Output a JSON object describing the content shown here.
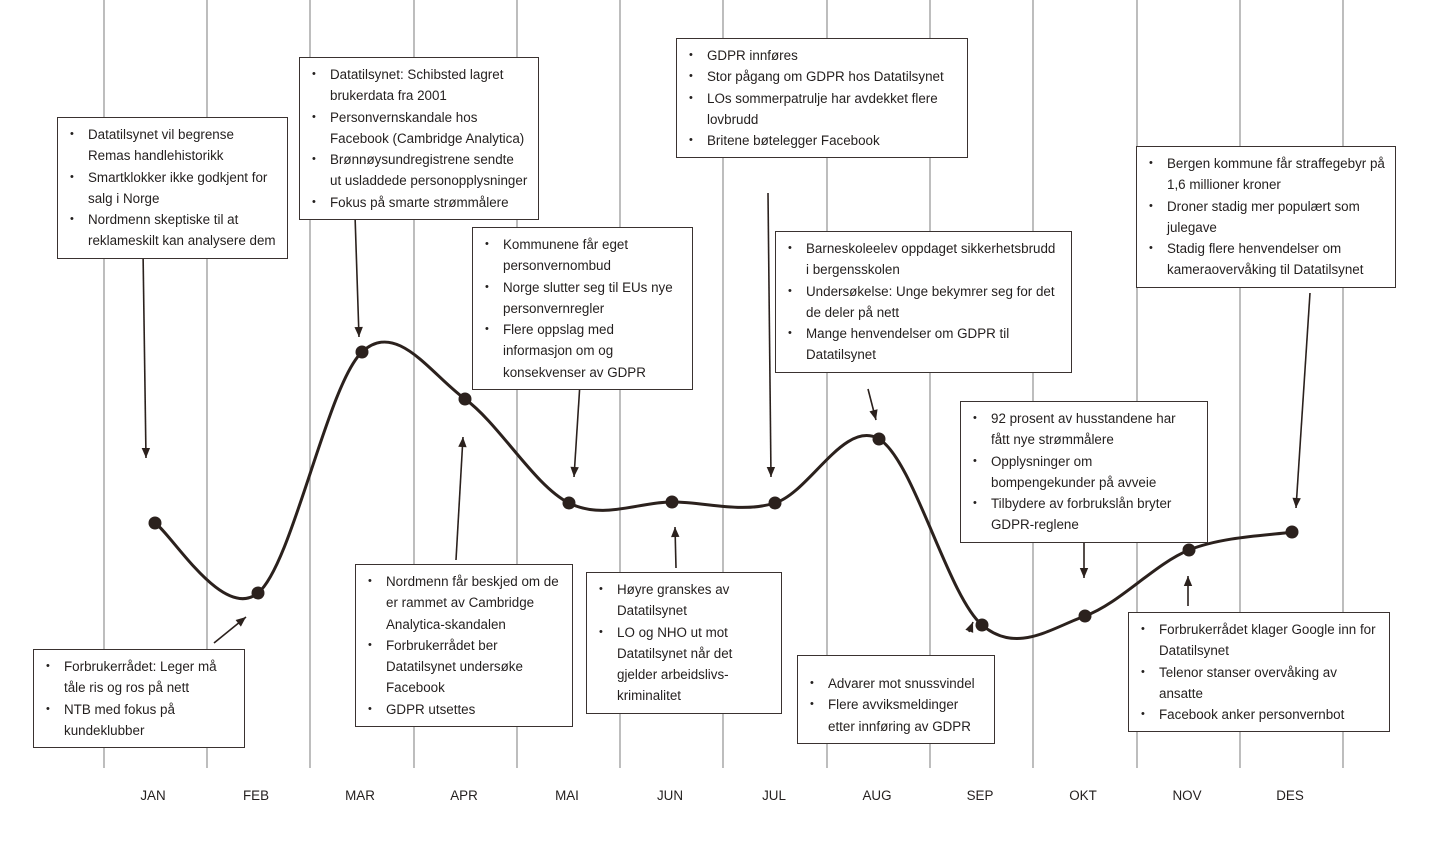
{
  "months": [
    "JAN",
    "FEB",
    "MAR",
    "APR",
    "MAI",
    "JUN",
    "JUL",
    "AUG",
    "SEP",
    "OKT",
    "NOV",
    "DES"
  ],
  "notes": [
    {
      "id": "jan",
      "items": [
        "Datatilsynet vil begrense Remas handlehistorikk",
        "Smartklokker ikke godkjent for salg i Norge",
        "Nordmenn skeptiske til at reklameskilt kan analysere dem"
      ]
    },
    {
      "id": "feb",
      "items": [
        "Forbrukerrådet: Leger må tåle ris og ros på nett",
        "NTB med fokus på kundeklubber"
      ]
    },
    {
      "id": "mar",
      "items": [
        "Datatilsynet: Schibsted lagret brukerdata fra 2001",
        "Personvernskandale hos Facebook (Cambridge  Analytica)",
        "Brønnøysundregistrene sendte ut usladdede personopplysninger",
        "Fokus på smarte strømmålere"
      ]
    },
    {
      "id": "apr",
      "items": [
        "Nordmenn får beskjed om de er rammet av Cambridge Analytica-skandalen",
        "Forbrukerrådet ber Datatilsynet undersøke Facebook",
        "GDPR utsettes"
      ]
    },
    {
      "id": "mai",
      "items": [
        "Kommunene får eget personvernombud",
        "Norge slutter seg til EUs nye personvernregler",
        "Flere oppslag med informasjon om og konsekvenser av GDPR"
      ]
    },
    {
      "id": "jun",
      "items": [
        "Høyre granskes av Datatilsynet",
        "LO og NHO ut mot Datatilsynet når det gjelder arbeidslivs-kriminalitet"
      ]
    },
    {
      "id": "jul",
      "items": [
        "GDPR innføres",
        "Stor pågang om GDPR hos Datatilsynet",
        "LOs sommerpatrulje har avdekket flere lovbrudd",
        "Britene bøtelegger Facebook"
      ]
    },
    {
      "id": "aug",
      "items": [
        "Barneskoleelev oppdaget sikkerhetsbrudd i bergensskolen",
        "Undersøkelse: Unge bekymrer seg for det de deler på nett",
        "Mange henvendelser om GDPR til Datatilsynet"
      ]
    },
    {
      "id": "sep",
      "items": [
        "Advarer mot snussvindel",
        "Flere avviksmeldinger etter innføring av GDPR"
      ]
    },
    {
      "id": "okt",
      "items": [
        "92 prosent av husstandene har fått nye strømmålere",
        "Opplysninger om bompengekunder på avveie",
        "Tilbydere av forbrukslån bryter GDPR-reglene"
      ]
    },
    {
      "id": "nov",
      "items": [
        "Forbrukerrådet klager Google inn for Datatilsynet",
        "Telenor stanser overvåking av ansatte",
        "Facebook anker personvernbot"
      ]
    },
    {
      "id": "des",
      "items": [
        "Bergen kommune får straffegebyr på 1,6 millioner kroner",
        "Droner stadig mer populært som julegave",
        "Stadig flere henvendelser om kameraovervåking til Datatilsynet"
      ]
    }
  ],
  "colors": {
    "line": "#2b211d",
    "grid": "#9a9a9a",
    "box_border": "#3a3230",
    "text": "#231f1e"
  }
}
